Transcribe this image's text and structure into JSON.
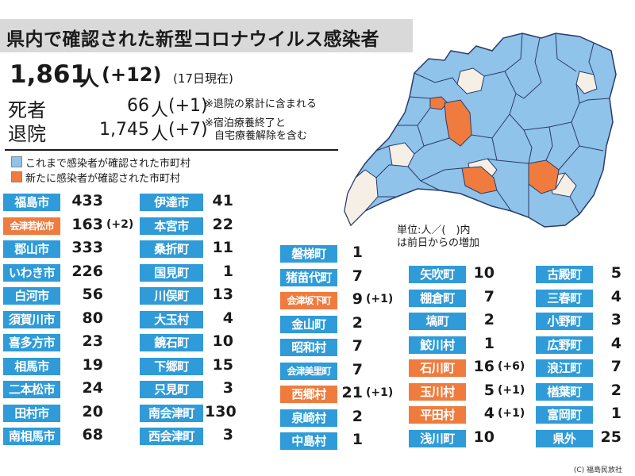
{
  "title": "県内で確認された新型コロナウイルス感染者",
  "total": {
    "number": "1,861",
    "unit": "人",
    "diff": "(+12)",
    "as_of": "(17日現在)"
  },
  "deaths": {
    "label": "死者",
    "number": "66",
    "unit": "人",
    "diff": "(+1)",
    "note": "※退院の累計に含まれる"
  },
  "discharged": {
    "label": "退院",
    "number": "1,745",
    "unit": "人",
    "diff": "(+7)",
    "note_line1": "※宿泊療養終了と",
    "note_line2": "自宅療養解除を含む"
  },
  "legend": [
    {
      "text": "これまで感染者が確認された市町村",
      "color": "#8fc3e9"
    },
    {
      "text": "新たに感染者が確認された市町村",
      "color": "#ef7c3e"
    }
  ],
  "unit_note": {
    "line1": "単位:人／(　)内",
    "line2": "は前日からの増加"
  },
  "colors": {
    "blue_tag": "#2f9bd8",
    "orange_tag": "#ef7c3e",
    "map_blue": "#8fc3e9",
    "map_none": "#f5efe6",
    "map_new": "#ef7c3e"
  },
  "municipalities": [
    {
      "name": "福島市",
      "value": "433",
      "diff": "",
      "new": false
    },
    {
      "name": "会津若松市",
      "value": "163",
      "diff": "(+2)",
      "new": true
    },
    {
      "name": "郡山市",
      "value": "333",
      "diff": "",
      "new": false
    },
    {
      "name": "いわき市",
      "value": "226",
      "diff": "",
      "new": false
    },
    {
      "name": "白河市",
      "value": "56",
      "diff": "",
      "new": false
    },
    {
      "name": "須賀川市",
      "value": "80",
      "diff": "",
      "new": false
    },
    {
      "name": "喜多方市",
      "value": "23",
      "diff": "",
      "new": false
    },
    {
      "name": "相馬市",
      "value": "19",
      "diff": "",
      "new": false
    },
    {
      "name": "二本松市",
      "value": "24",
      "diff": "",
      "new": false
    },
    {
      "name": "田村市",
      "value": "20",
      "diff": "",
      "new": false
    },
    {
      "name": "南相馬市",
      "value": "68",
      "diff": "",
      "new": false
    },
    {
      "name": "伊達市",
      "value": "41",
      "diff": "",
      "new": false
    },
    {
      "name": "本宮市",
      "value": "22",
      "diff": "",
      "new": false
    },
    {
      "name": "桑折町",
      "value": "11",
      "diff": "",
      "new": false
    },
    {
      "name": "国見町",
      "value": "1",
      "diff": "",
      "new": false
    },
    {
      "name": "川俣町",
      "value": "13",
      "diff": "",
      "new": false
    },
    {
      "name": "大玉村",
      "value": "4",
      "diff": "",
      "new": false
    },
    {
      "name": "鏡石町",
      "value": "10",
      "diff": "",
      "new": false
    },
    {
      "name": "下郷町",
      "value": "15",
      "diff": "",
      "new": false
    },
    {
      "name": "只見町",
      "value": "3",
      "diff": "",
      "new": false
    },
    {
      "name": "南会津町",
      "value": "130",
      "diff": "",
      "new": false
    },
    {
      "name": "西会津町",
      "value": "3",
      "diff": "",
      "new": false
    },
    {
      "name": "磐梯町",
      "value": "1",
      "diff": "",
      "new": false
    },
    {
      "name": "猪苗代町",
      "value": "7",
      "diff": "",
      "new": false
    },
    {
      "name": "会津坂下町",
      "value": "9",
      "diff": "(+1)",
      "new": true
    },
    {
      "name": "金山町",
      "value": "2",
      "diff": "",
      "new": false
    },
    {
      "name": "昭和村",
      "value": "7",
      "diff": "",
      "new": false
    },
    {
      "name": "会津美里町",
      "value": "7",
      "diff": "",
      "new": false
    },
    {
      "name": "西郷村",
      "value": "21",
      "diff": "(+1)",
      "new": true
    },
    {
      "name": "泉崎村",
      "value": "2",
      "diff": "",
      "new": false
    },
    {
      "name": "中島村",
      "value": "1",
      "diff": "",
      "new": false
    },
    {
      "name": "矢吹町",
      "value": "10",
      "diff": "",
      "new": false
    },
    {
      "name": "棚倉町",
      "value": "7",
      "diff": "",
      "new": false
    },
    {
      "name": "塙町",
      "value": "2",
      "diff": "",
      "new": false
    },
    {
      "name": "鮫川村",
      "value": "1",
      "diff": "",
      "new": false
    },
    {
      "name": "石川町",
      "value": "16",
      "diff": "(+6)",
      "new": true
    },
    {
      "name": "玉川村",
      "value": "5",
      "diff": "(+1)",
      "new": true
    },
    {
      "name": "平田村",
      "value": "4",
      "diff": "(+1)",
      "new": true
    },
    {
      "name": "浅川町",
      "value": "10",
      "diff": "",
      "new": false
    },
    {
      "name": "古殿町",
      "value": "5",
      "diff": "",
      "new": false
    },
    {
      "name": "三春町",
      "value": "4",
      "diff": "",
      "new": false
    },
    {
      "name": "小野町",
      "value": "3",
      "diff": "",
      "new": false
    },
    {
      "name": "広野町",
      "value": "4",
      "diff": "",
      "new": false
    },
    {
      "name": "浪江町",
      "value": "7",
      "diff": "",
      "new": false
    },
    {
      "name": "楢葉町",
      "value": "2",
      "diff": "",
      "new": false
    },
    {
      "name": "富岡町",
      "value": "1",
      "diff": "",
      "new": false
    },
    {
      "name": "県外",
      "value": "25",
      "diff": "",
      "new": false
    }
  ],
  "credit": "(C) 福島民放社"
}
